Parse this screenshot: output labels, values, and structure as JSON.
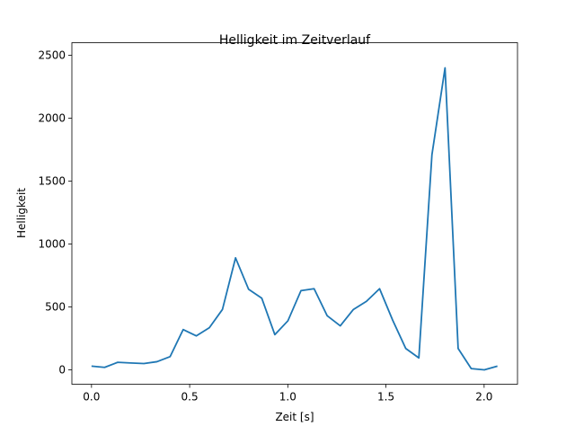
{
  "chart_data": {
    "type": "line",
    "title": "Helligkeit im Zeitverlauf",
    "xlabel": "Zeit [s]",
    "ylabel": "Helligkeit",
    "xlim": [
      -0.1,
      2.17
    ],
    "ylim": [
      -114,
      2600
    ],
    "xticks": [
      0.0,
      0.5,
      1.0,
      1.5,
      2.0
    ],
    "xtick_labels": [
      "0.0",
      "0.5",
      "1.0",
      "1.5",
      "2.0"
    ],
    "yticks": [
      0,
      500,
      1000,
      1500,
      2000,
      2500
    ],
    "ytick_labels": [
      "0",
      "500",
      "1000",
      "1500",
      "2000",
      "2500"
    ],
    "grid": false,
    "color": "#1f77b4",
    "x_step": 0.0667,
    "values": [
      30,
      20,
      60,
      55,
      50,
      65,
      105,
      320,
      270,
      335,
      480,
      890,
      640,
      570,
      280,
      390,
      630,
      645,
      430,
      350,
      480,
      545,
      645,
      395,
      170,
      95,
      1710,
      2400,
      170,
      10,
      0,
      30
    ]
  }
}
